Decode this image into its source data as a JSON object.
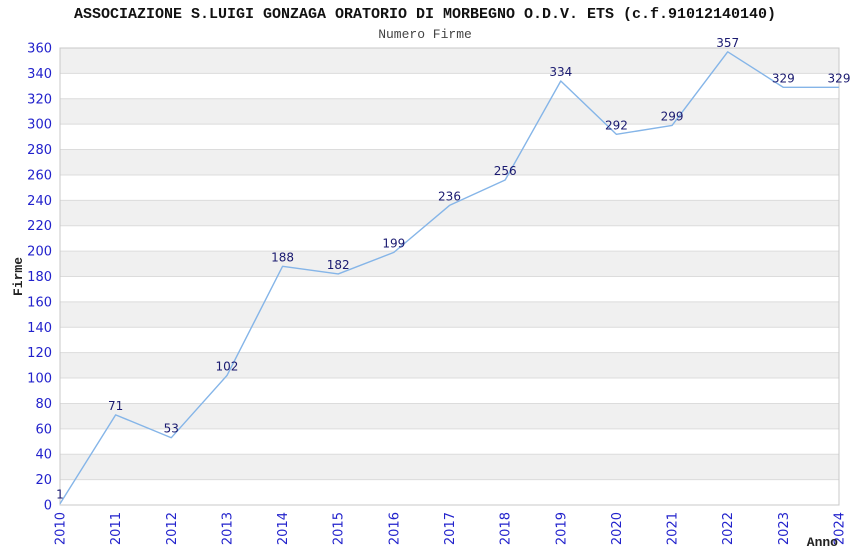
{
  "chart_data": {
    "type": "line",
    "title": "ASSOCIAZIONE S.LUIGI GONZAGA ORATORIO DI MORBEGNO O.D.V. ETS (c.f.91012140140)",
    "subtitle": "Numero Firme",
    "xlabel": "Anno",
    "ylabel": "Firme",
    "x": [
      "2010",
      "2011",
      "2012",
      "2013",
      "2014",
      "2015",
      "2016",
      "2017",
      "2018",
      "2019",
      "2020",
      "2021",
      "2022",
      "2023",
      "2024"
    ],
    "series": [
      {
        "name": "Numero Firme",
        "values": [
          1,
          71,
          53,
          102,
          188,
          182,
          199,
          236,
          256,
          334,
          292,
          299,
          357,
          329,
          329
        ]
      }
    ],
    "ylim": [
      0,
      360
    ],
    "ytick_step": 20,
    "grid": "horizontal-bands-alternating",
    "legend": "none",
    "point_labels_visible": true
  },
  "colors": {
    "background": "#ffffff",
    "band_gray": "#f0f0f0",
    "gridline": "#dcdcdc",
    "plot_border": "#c8c8c8",
    "line": "#85b5e8",
    "tick_label": "#2222cc",
    "data_label": "#1a1a70",
    "title": "#111111",
    "subtitle": "#444444",
    "axis_label": "#222222"
  }
}
